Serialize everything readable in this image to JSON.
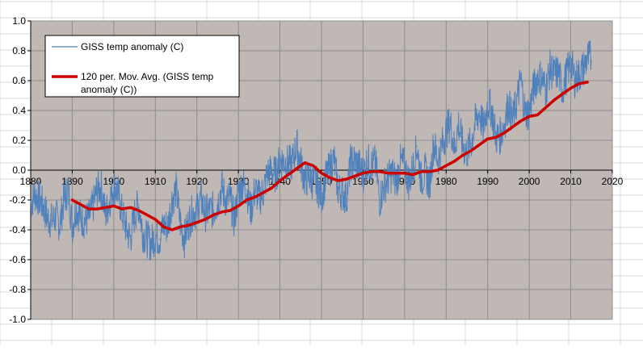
{
  "chart_data": {
    "type": "line",
    "title": "",
    "xlabel": "",
    "ylabel": "",
    "xlim": [
      1880,
      2020
    ],
    "ylim": [
      -1.0,
      1.0
    ],
    "x_ticks": [
      1880,
      1890,
      1900,
      1910,
      1920,
      1930,
      1940,
      1950,
      1960,
      1970,
      1980,
      1990,
      2000,
      2010,
      2020
    ],
    "x_tick_labels": [
      "1880",
      "1890",
      "1900",
      "1910",
      "1920",
      "1930",
      "1940",
      "1950",
      "1960",
      "1970",
      "1980",
      "1990",
      "2000",
      "2010",
      "2020"
    ],
    "y_ticks": [
      -1.0,
      -0.8,
      -0.6,
      -0.4,
      -0.2,
      0.0,
      0.2,
      0.4,
      0.6,
      0.8,
      1.0
    ],
    "y_tick_labels": [
      "-1.0",
      "-0.8",
      "-0.6",
      "-0.4",
      "-0.2",
      "0.0",
      "0.2",
      "0.4",
      "0.6",
      "0.8",
      "1.0"
    ],
    "grid": true,
    "legend_position": "top-left",
    "background": "#c0b8b4",
    "series": [
      {
        "name": "GISS temp anomaly (C)",
        "color": "#4f81bd",
        "x": [
          1880,
          1881,
          1882,
          1883,
          1884,
          1885,
          1886,
          1887,
          1888,
          1889,
          1890,
          1891,
          1892,
          1893,
          1894,
          1895,
          1896,
          1897,
          1898,
          1899,
          1900,
          1901,
          1902,
          1903,
          1904,
          1905,
          1906,
          1907,
          1908,
          1909,
          1910,
          1911,
          1912,
          1913,
          1914,
          1915,
          1916,
          1917,
          1918,
          1919,
          1920,
          1921,
          1922,
          1923,
          1924,
          1925,
          1926,
          1927,
          1928,
          1929,
          1930,
          1931,
          1932,
          1933,
          1934,
          1935,
          1936,
          1937,
          1938,
          1939,
          1940,
          1941,
          1942,
          1943,
          1944,
          1945,
          1946,
          1947,
          1948,
          1949,
          1950,
          1951,
          1952,
          1953,
          1954,
          1955,
          1956,
          1957,
          1958,
          1959,
          1960,
          1961,
          1962,
          1963,
          1964,
          1965,
          1966,
          1967,
          1968,
          1969,
          1970,
          1971,
          1972,
          1973,
          1974,
          1975,
          1976,
          1977,
          1978,
          1979,
          1980,
          1981,
          1982,
          1983,
          1984,
          1985,
          1986,
          1987,
          1988,
          1989,
          1990,
          1991,
          1992,
          1993,
          1994,
          1995,
          1996,
          1997,
          1998,
          1999,
          2000,
          2001,
          2002,
          2003,
          2004,
          2005,
          2006,
          2007,
          2008,
          2009,
          2010,
          2011,
          2012,
          2013,
          2014
        ],
        "values": [
          -0.22,
          -0.16,
          -0.19,
          -0.24,
          -0.32,
          -0.34,
          -0.31,
          -0.36,
          -0.2,
          -0.12,
          -0.38,
          -0.25,
          -0.32,
          -0.34,
          -0.32,
          -0.24,
          -0.13,
          -0.12,
          -0.3,
          -0.2,
          -0.1,
          -0.15,
          -0.29,
          -0.39,
          -0.46,
          -0.3,
          -0.23,
          -0.42,
          -0.46,
          -0.49,
          -0.44,
          -0.46,
          -0.37,
          -0.38,
          -0.2,
          -0.13,
          -0.35,
          -0.46,
          -0.35,
          -0.28,
          -0.27,
          -0.19,
          -0.29,
          -0.27,
          -0.27,
          -0.22,
          -0.11,
          -0.21,
          -0.19,
          -0.34,
          -0.14,
          -0.1,
          -0.13,
          -0.27,
          -0.13,
          -0.19,
          -0.14,
          -0.02,
          -0.01,
          -0.03,
          0.07,
          0.06,
          0.04,
          0.05,
          0.17,
          0.05,
          -0.07,
          -0.04,
          -0.08,
          -0.1,
          -0.18,
          -0.06,
          0.01,
          0.08,
          -0.13,
          -0.15,
          -0.19,
          0.05,
          0.06,
          0.03,
          -0.03,
          0.06,
          0.03,
          0.05,
          -0.2,
          -0.11,
          -0.06,
          -0.02,
          -0.08,
          0.05,
          0.03,
          -0.08,
          0.01,
          0.16,
          -0.07,
          -0.01,
          -0.1,
          0.18,
          0.07,
          0.16,
          0.26,
          0.32,
          0.14,
          0.31,
          0.16,
          0.12,
          0.18,
          0.32,
          0.39,
          0.27,
          0.45,
          0.4,
          0.22,
          0.23,
          0.31,
          0.45,
          0.33,
          0.46,
          0.61,
          0.38,
          0.39,
          0.54,
          0.63,
          0.62,
          0.54,
          0.68,
          0.64,
          0.66,
          0.54,
          0.64,
          0.72,
          0.61,
          0.64,
          0.68,
          0.75
        ]
      },
      {
        "name": "120 per. Mov. Avg. (GISS temp anomaly (C))",
        "color": "#cc0000",
        "x": [
          1890,
          1892,
          1894,
          1896,
          1898,
          1900,
          1902,
          1904,
          1906,
          1908,
          1910,
          1912,
          1914,
          1916,
          1918,
          1920,
          1922,
          1924,
          1926,
          1928,
          1930,
          1932,
          1934,
          1936,
          1938,
          1940,
          1942,
          1944,
          1946,
          1948,
          1950,
          1952,
          1954,
          1956,
          1958,
          1960,
          1962,
          1964,
          1966,
          1968,
          1970,
          1972,
          1974,
          1976,
          1978,
          1980,
          1982,
          1984,
          1986,
          1988,
          1990,
          1992,
          1994,
          1996,
          1998,
          2000,
          2002,
          2004,
          2006,
          2008,
          2010,
          2012,
          2014
        ],
        "values": [
          -0.2,
          -0.23,
          -0.26,
          -0.26,
          -0.25,
          -0.24,
          -0.26,
          -0.25,
          -0.27,
          -0.3,
          -0.33,
          -0.38,
          -0.4,
          -0.38,
          -0.37,
          -0.35,
          -0.33,
          -0.3,
          -0.28,
          -0.27,
          -0.24,
          -0.2,
          -0.18,
          -0.15,
          -0.12,
          -0.07,
          -0.03,
          0.01,
          0.05,
          0.03,
          -0.02,
          -0.05,
          -0.07,
          -0.06,
          -0.04,
          -0.02,
          -0.01,
          -0.01,
          -0.02,
          -0.02,
          -0.02,
          -0.03,
          -0.01,
          -0.01,
          0.0,
          0.03,
          0.06,
          0.1,
          0.13,
          0.17,
          0.21,
          0.22,
          0.25,
          0.29,
          0.33,
          0.36,
          0.37,
          0.42,
          0.47,
          0.51,
          0.55,
          0.58,
          0.59
        ]
      }
    ]
  }
}
